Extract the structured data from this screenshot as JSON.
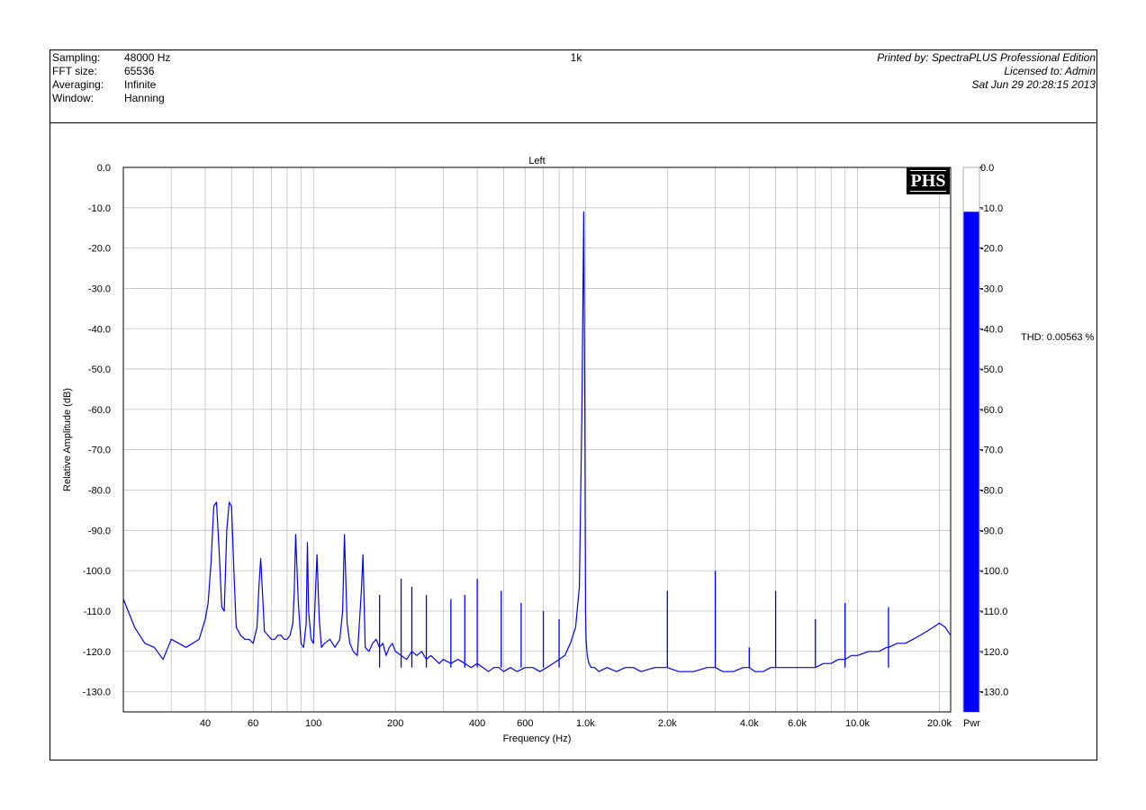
{
  "header": {
    "labels": [
      "Sampling:",
      "FFT size:",
      "Averaging:",
      "Window:"
    ],
    "values": [
      "48000 Hz",
      "65536",
      "Infinite",
      "Hanning"
    ],
    "title": "1k",
    "printed_by": "Printed by: SpectraPLUS Professional Edition",
    "licensed_to": "Licensed to: Admin",
    "timestamp": "Sat Jun 29 20:28:15 2013"
  },
  "logo_text": "PHS",
  "thd_text": "THD: 0.00563 %",
  "bar_label": "Pwr",
  "colors": {
    "trace": "#0000ff",
    "grid": "#c0c0c0",
    "axis": "#000000"
  },
  "chart_data": {
    "type": "line",
    "title": "Left",
    "xlabel": "Frequency (Hz)",
    "ylabel": "Relative Amplitude (dB)",
    "xscale": "log",
    "xlim": [
      20,
      22000
    ],
    "ylim": [
      -135,
      0
    ],
    "grid": true,
    "x_tick_labels": [
      {
        "v": 40,
        "t": "40"
      },
      {
        "v": 60,
        "t": "60"
      },
      {
        "v": 100,
        "t": "100"
      },
      {
        "v": 200,
        "t": "200"
      },
      {
        "v": 400,
        "t": "400"
      },
      {
        "v": 600,
        "t": "600"
      },
      {
        "v": 1000,
        "t": "1.0k"
      },
      {
        "v": 2000,
        "t": "2.0k"
      },
      {
        "v": 4000,
        "t": "4.0k"
      },
      {
        "v": 6000,
        "t": "6.0k"
      },
      {
        "v": 10000,
        "t": "10.0k"
      },
      {
        "v": 20000,
        "t": "20.0k"
      }
    ],
    "y_ticks": [
      0,
      -10,
      -20,
      -30,
      -40,
      -50,
      -60,
      -70,
      -80,
      -90,
      -100,
      -110,
      -120,
      -130
    ],
    "y_tick_labels": [
      "0.0",
      "-10.0",
      "-20.0",
      "-30.0",
      "-40.0",
      "-50.0",
      "-60.0",
      "-70.0",
      "-80.0",
      "-90.0",
      "-100.0",
      "-110.0",
      "-120.0",
      "-130.0"
    ],
    "series": [
      {
        "x": [
          20,
          22,
          24,
          26,
          28,
          30,
          32,
          34,
          36,
          38,
          40,
          41,
          42,
          43,
          44,
          45,
          46,
          47,
          48,
          49,
          50,
          51,
          52,
          53,
          54,
          56,
          58,
          60,
          62,
          63,
          64,
          65,
          66,
          68,
          70,
          72,
          74,
          76,
          78,
          80,
          82,
          84,
          85,
          86,
          88,
          90,
          92,
          94,
          95,
          96,
          98,
          100,
          103,
          105,
          107,
          110,
          115,
          120,
          125,
          128,
          130,
          133,
          136,
          140,
          145,
          150,
          152,
          155,
          160,
          165,
          170,
          175,
          180,
          185,
          190,
          195,
          200,
          210,
          220,
          230,
          240,
          250,
          260,
          270,
          280,
          290,
          300,
          320,
          340,
          360,
          380,
          400,
          420,
          440,
          460,
          480,
          500,
          530,
          560,
          600,
          640,
          680,
          720,
          760,
          800,
          840,
          880,
          920,
          950,
          970,
          985,
          995,
          1000,
          1005,
          1015,
          1030,
          1050,
          1080,
          1120,
          1200,
          1300,
          1400,
          1500,
          1600,
          1800,
          2000,
          2200,
          2500,
          2800,
          3000,
          3200,
          3500,
          3800,
          4000,
          4200,
          4500,
          4800,
          5000,
          5200,
          5500,
          6000,
          6500,
          6700,
          7000,
          7500,
          8000,
          8500,
          9000,
          9500,
          9800,
          10000,
          11000,
          12000,
          12800,
          13000,
          14000,
          15000,
          16000,
          17000,
          18000,
          19000,
          20000,
          21000,
          22000
        ],
        "y": [
          -107,
          -114,
          -118,
          -119,
          -122,
          -117,
          -118,
          -119,
          -118,
          -117,
          -112,
          -108,
          -98,
          -84,
          -83,
          -95,
          -109,
          -110,
          -90,
          -83,
          -84,
          -100,
          -114,
          -115,
          -116,
          -117,
          -117,
          -118,
          -114,
          -104,
          -97,
          -106,
          -115,
          -116,
          -117,
          -117,
          -116,
          -116,
          -117,
          -117,
          -116,
          -113,
          -105,
          -91,
          -108,
          -118,
          -119,
          -113,
          -93,
          -110,
          -117,
          -118,
          -96,
          -112,
          -119,
          -118,
          -117,
          -119,
          -117,
          -110,
          -91,
          -113,
          -118,
          -120,
          -121,
          -105,
          -96,
          -119,
          -120,
          -118,
          -117,
          -119,
          -118,
          -121,
          -119,
          -118,
          -120,
          -121,
          -122,
          -120,
          -121,
          -120,
          -122,
          -121,
          -122,
          -123,
          -122,
          -123,
          -122,
          -123,
          -124,
          -123,
          -124,
          -125,
          -124,
          -124,
          -125,
          -124,
          -125,
          -124,
          -124,
          -125,
          -124,
          -123,
          -122,
          -121,
          -118,
          -114,
          -104,
          -60,
          -11,
          -62,
          -110,
          -117,
          -121,
          -123,
          -124,
          -124,
          -125,
          -124,
          -125,
          -124,
          -124,
          -125,
          -124,
          -124,
          -125,
          -125,
          -124,
          -124,
          -125,
          -125,
          -124,
          -124,
          -125,
          -125,
          -124,
          -124,
          -124,
          -124,
          -124,
          -124,
          -124,
          -124,
          -123,
          -123,
          -122,
          -122,
          -121,
          -121,
          -121,
          -120,
          -120,
          -119,
          -119,
          -118,
          -118,
          -117,
          -116,
          -115,
          -114,
          -113,
          -114,
          -116
        ]
      }
    ],
    "spikes": [
      {
        "x": 2000,
        "y": -105
      },
      {
        "x": 3000,
        "y": -100
      },
      {
        "x": 4000,
        "y": -119
      },
      {
        "x": 5000,
        "y": -105
      },
      {
        "x": 7000,
        "y": -112
      },
      {
        "x": 9000,
        "y": -108
      },
      {
        "x": 13000,
        "y": -109
      },
      {
        "x": 175,
        "y": -106
      },
      {
        "x": 210,
        "y": -102
      },
      {
        "x": 230,
        "y": -104
      },
      {
        "x": 260,
        "y": -106
      },
      {
        "x": 320,
        "y": -107
      },
      {
        "x": 360,
        "y": -106
      },
      {
        "x": 400,
        "y": -102
      },
      {
        "x": 490,
        "y": -105
      },
      {
        "x": 580,
        "y": -108
      },
      {
        "x": 700,
        "y": -110
      },
      {
        "x": 800,
        "y": -112
      }
    ],
    "bar": {
      "label": "Pwr",
      "level_db": -11,
      "ylim": [
        -135,
        0
      ]
    }
  }
}
